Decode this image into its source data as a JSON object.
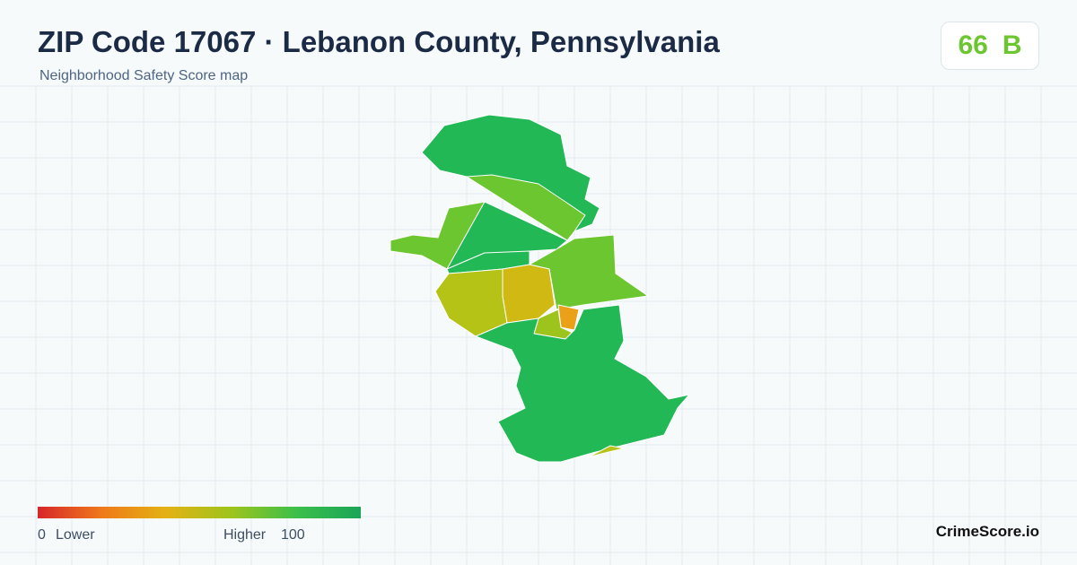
{
  "header": {
    "title": "ZIP Code 17067 · Lebanon County, Pennsylvania",
    "subtitle": "Neighborhood Safety Score map"
  },
  "badge": {
    "score": 66,
    "grade": "B"
  },
  "legend": {
    "min": 0,
    "min_label": "Lower",
    "max_label": "Higher",
    "max": 100
  },
  "footer": {
    "brand": "CrimeScore.io"
  }
}
